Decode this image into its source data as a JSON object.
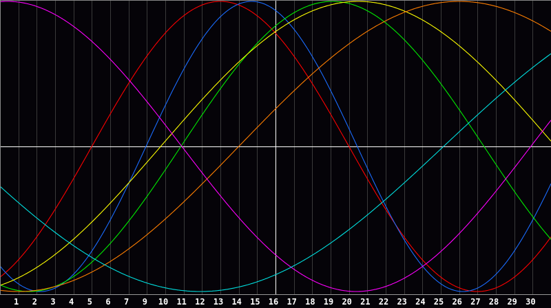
{
  "chart_data": {
    "type": "line",
    "title": "",
    "xlabel": "",
    "ylabel": "",
    "x_tick_labels": [
      "1",
      "2",
      "3",
      "4",
      "5",
      "6",
      "7",
      "9",
      "10",
      "11",
      "12",
      "13",
      "14",
      "15",
      "16",
      "17",
      "18",
      "19",
      "20",
      "21",
      "22",
      "23",
      "24",
      "25",
      "26",
      "27",
      "28",
      "29",
      "30"
    ],
    "xlim_days": [
      0,
      30
    ],
    "ylim": [
      -1,
      1
    ],
    "grid": "vertical",
    "crosshair": {
      "x_day": 15,
      "y": 0
    },
    "background": "#050308",
    "series": [
      {
        "color": "#ff0000",
        "period_days": 28,
        "peak_day": 12.0
      },
      {
        "color": "#1a6cff",
        "period_days": 23,
        "peak_day": 13.7
      },
      {
        "color": "#00ee00",
        "period_days": 33,
        "peak_day": 18.1
      },
      {
        "color": "#ffff00",
        "period_days": 43,
        "peak_day": 19.5
      },
      {
        "color": "#ff7f00",
        "period_days": 48,
        "peak_day": 25.0
      },
      {
        "color": "#ff00ff",
        "period_days": 38,
        "peak_day": 0.4
      },
      {
        "color": "#00e0e0",
        "period_days": 53,
        "peak_day": -15.6
      }
    ]
  }
}
